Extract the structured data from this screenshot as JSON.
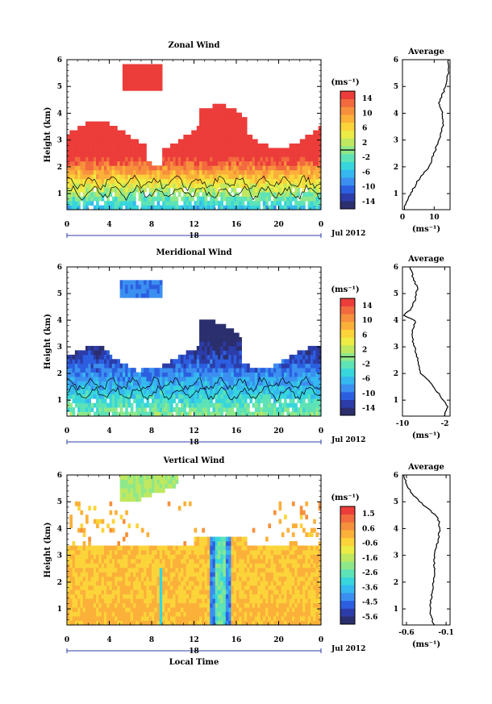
{
  "colors": {
    "scale": [
      "#2b2f6e",
      "#2c3ca8",
      "#2c5fe0",
      "#3b8ff0",
      "#35b8f0",
      "#37d6dc",
      "#5ee3b6",
      "#8ee88a",
      "#bfe860",
      "#ecec45",
      "#fbd43a",
      "#fbb03a",
      "#f7903c",
      "#f26a3e",
      "#ec3d3a"
    ],
    "contour": "#000000"
  },
  "panels": [
    {
      "title": "Zonal Wind",
      "avg_title": "Average",
      "ylabel": "Height (km)",
      "unit": "(ms⁻¹)",
      "avg_unit": "(ms⁻¹)",
      "y_ticks": [
        "1",
        "2",
        "3",
        "4",
        "5",
        "6"
      ],
      "x_ticks": [
        "0",
        "4",
        "8",
        "12",
        "16",
        "20",
        "0"
      ],
      "date_mid": "18",
      "date_right": "Jul 2012",
      "cb_labels": [
        "14",
        "10",
        "6",
        "2",
        "-2",
        "-6",
        "-10",
        "-14"
      ],
      "avg_ticks": [
        "0",
        "10"
      ],
      "chart_data": {
        "type": "heatmap",
        "variable": "Zonal Wind",
        "xlabel": "",
        "ylabel": "Height (km)",
        "x_range_hours": [
          0,
          24
        ],
        "ylim": [
          0.4,
          6
        ],
        "clim": [
          -16,
          16
        ],
        "profile": {
          "xlim": [
            0,
            15
          ],
          "heights": [
            0.4,
            0.8,
            1.2,
            1.6,
            2.0,
            2.4,
            2.8,
            3.2,
            3.6,
            4.0,
            4.4,
            4.8,
            5.2,
            5.6,
            6.0
          ],
          "values": [
            0.5,
            1.5,
            3.5,
            5.5,
            8.5,
            9.5,
            11,
            12,
            13,
            12.5,
            11.5,
            13,
            14,
            14.5,
            14.5
          ]
        }
      }
    },
    {
      "title": "Meridional Wind",
      "avg_title": "Average",
      "ylabel": "Height (km)",
      "unit": "(ms⁻¹)",
      "avg_unit": "(ms⁻¹)",
      "y_ticks": [
        "1",
        "2",
        "3",
        "4",
        "5",
        "6"
      ],
      "x_ticks": [
        "0",
        "4",
        "8",
        "12",
        "16",
        "20",
        "0"
      ],
      "date_mid": "18",
      "date_right": "Jul 2012",
      "cb_labels": [
        "14",
        "10",
        "6",
        "2",
        "-2",
        "-6",
        "-10",
        "-14"
      ],
      "avg_ticks": [
        "-10",
        "-2"
      ],
      "chart_data": {
        "type": "heatmap",
        "variable": "Meridional Wind",
        "xlabel": "",
        "ylabel": "Height (km)",
        "x_range_hours": [
          0,
          24
        ],
        "ylim": [
          0.4,
          6
        ],
        "clim": [
          -16,
          16
        ],
        "profile": {
          "xlim": [
            -10,
            -1
          ],
          "heights": [
            0.4,
            0.8,
            1.2,
            1.6,
            2.0,
            2.4,
            2.8,
            3.2,
            3.6,
            4.0,
            4.2,
            4.4,
            4.8,
            5.2,
            5.6,
            6.0
          ],
          "values": [
            -2,
            -1.5,
            -3,
            -4.5,
            -6.5,
            -7,
            -7.5,
            -8,
            -8.2,
            -7.5,
            -10,
            -8.5,
            -7.5,
            -7.2,
            -8,
            -8.5
          ]
        }
      }
    },
    {
      "title": "Vertical Wind",
      "avg_title": "Average",
      "ylabel": "Height (km)",
      "unit": "(ms⁻¹)",
      "avg_unit": "(ms⁻¹)",
      "y_ticks": [
        "1",
        "2",
        "3",
        "4",
        "5",
        "6"
      ],
      "x_ticks": [
        "0",
        "4",
        "8",
        "12",
        "16",
        "20",
        "0"
      ],
      "date_mid": "18",
      "date_right": "Jul 2012",
      "xlabel": "Local Time",
      "cb_labels": [
        "1.5",
        "0.6",
        "-0.6",
        "-1.6",
        "-2.6",
        "-3.6",
        "-4.5",
        "-5.6"
      ],
      "avg_ticks": [
        "-0.6",
        "-0.1"
      ],
      "chart_data": {
        "type": "heatmap",
        "variable": "Vertical Wind",
        "xlabel": "Local Time",
        "ylabel": "Height (km)",
        "x_range_hours": [
          0,
          24
        ],
        "ylim": [
          0.4,
          6
        ],
        "clim": [
          -6,
          2
        ],
        "profile": {
          "xlim": [
            -0.65,
            -0.05
          ],
          "heights": [
            0.4,
            0.8,
            1.2,
            1.6,
            2.0,
            2.4,
            2.8,
            3.2,
            3.6,
            4.0,
            4.4,
            4.8,
            5.2,
            5.6,
            6.0
          ],
          "values": [
            -0.25,
            -0.3,
            -0.3,
            -0.28,
            -0.26,
            -0.25,
            -0.25,
            -0.23,
            -0.2,
            -0.18,
            -0.2,
            -0.35,
            -0.5,
            -0.6,
            -0.63
          ]
        }
      }
    }
  ]
}
